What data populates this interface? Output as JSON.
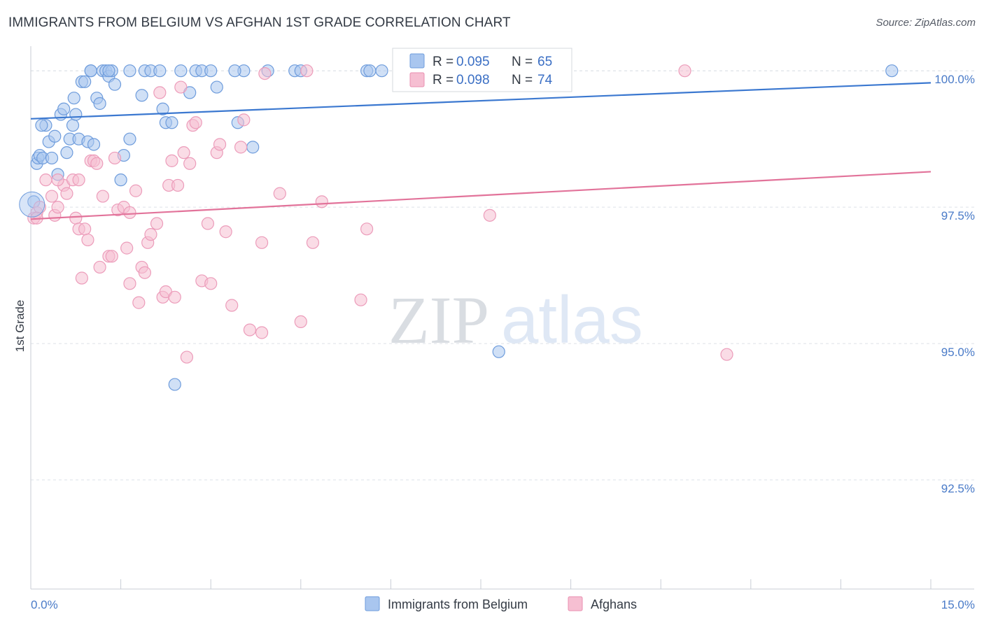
{
  "header": {
    "title": "IMMIGRANTS FROM BELGIUM VS AFGHAN 1ST GRADE CORRELATION CHART",
    "source": "Source: ZipAtlas.com"
  },
  "watermark": {
    "zip": "ZIP",
    "atlas": "atlas"
  },
  "colors": {
    "blue": "#3b78d0",
    "blue_fill": "#a9c6ef",
    "pink": "#e2739a",
    "pink_fill": "#f6bfd2",
    "tick": "#4a7bc8",
    "grid": "#dde1e7"
  },
  "chart_data": {
    "type": "scatter",
    "xlabel": "",
    "ylabel": "1st Grade",
    "xlim": [
      0,
      15
    ],
    "ylim": [
      90.5,
      100.4
    ],
    "x_tick_labels": [
      "0.0%",
      "15.0%"
    ],
    "y_ticks": [
      {
        "value": 100.0,
        "label": "100.0%"
      },
      {
        "value": 97.5,
        "label": "97.5%"
      },
      {
        "value": 95.0,
        "label": "95.0%"
      },
      {
        "value": 92.5,
        "label": "92.5%"
      }
    ],
    "legend": {
      "position": "top-center",
      "entries": [
        {
          "r_label": "R =",
          "r_value": "0.095",
          "n_label": "N =",
          "n_value": "65"
        },
        {
          "r_label": "R =",
          "r_value": "0.098",
          "n_label": "N =",
          "n_value": "74"
        }
      ]
    },
    "series": [
      {
        "name": "Immigrants from Belgium",
        "color": "#3b78d0",
        "trend": {
          "x": [
            0,
            15
          ],
          "y": [
            99.12,
            99.78
          ]
        },
        "points": [
          [
            0.05,
            97.6
          ],
          [
            0.1,
            98.3
          ],
          [
            0.12,
            98.4
          ],
          [
            0.15,
            98.45
          ],
          [
            0.2,
            98.4
          ],
          [
            0.25,
            99.0
          ],
          [
            0.3,
            98.7
          ],
          [
            0.35,
            98.4
          ],
          [
            0.4,
            98.8
          ],
          [
            0.45,
            98.1
          ],
          [
            0.5,
            99.2
          ],
          [
            0.55,
            99.3
          ],
          [
            0.6,
            98.5
          ],
          [
            0.65,
            98.75
          ],
          [
            0.7,
            99.0
          ],
          [
            0.72,
            99.5
          ],
          [
            0.75,
            99.2
          ],
          [
            0.8,
            98.75
          ],
          [
            0.85,
            99.8
          ],
          [
            0.9,
            99.8
          ],
          [
            0.95,
            98.7
          ],
          [
            1.0,
            100.0
          ],
          [
            1.05,
            98.65
          ],
          [
            1.1,
            99.5
          ],
          [
            1.15,
            99.4
          ],
          [
            1.2,
            100.0
          ],
          [
            1.25,
            100.0
          ],
          [
            1.3,
            99.9
          ],
          [
            1.35,
            100.0
          ],
          [
            1.4,
            99.75
          ],
          [
            1.5,
            98.0
          ],
          [
            1.55,
            98.45
          ],
          [
            1.65,
            98.75
          ],
          [
            1.65,
            100.0
          ],
          [
            1.85,
            99.55
          ],
          [
            1.9,
            100.0
          ],
          [
            2.0,
            100.0
          ],
          [
            2.15,
            100.0
          ],
          [
            2.2,
            99.3
          ],
          [
            2.25,
            99.05
          ],
          [
            2.35,
            99.05
          ],
          [
            2.5,
            100.0
          ],
          [
            2.65,
            99.6
          ],
          [
            2.75,
            100.0
          ],
          [
            2.85,
            100.0
          ],
          [
            3.0,
            100.0
          ],
          [
            3.1,
            99.7
          ],
          [
            3.45,
            99.05
          ],
          [
            3.55,
            100.0
          ],
          [
            3.7,
            98.6
          ],
          [
            3.95,
            100.0
          ],
          [
            4.4,
            100.0
          ],
          [
            4.5,
            100.0
          ],
          [
            5.6,
            100.0
          ],
          [
            5.65,
            100.0
          ],
          [
            5.85,
            100.0
          ],
          [
            6.15,
            100.0
          ],
          [
            6.15,
            100.0
          ],
          [
            7.8,
            94.85
          ],
          [
            2.4,
            94.25
          ],
          [
            14.35,
            100.0
          ],
          [
            0.18,
            99.0
          ],
          [
            1.0,
            100.0
          ],
          [
            3.4,
            100.0
          ],
          [
            1.3,
            100.0
          ]
        ]
      },
      {
        "name": "Afghans",
        "color": "#e2739a",
        "trend": {
          "x": [
            0,
            15
          ],
          "y": [
            97.28,
            98.15
          ]
        },
        "points": [
          [
            0.05,
            97.3
          ],
          [
            0.1,
            97.4
          ],
          [
            0.15,
            97.5
          ],
          [
            0.25,
            98.0
          ],
          [
            0.35,
            97.7
          ],
          [
            0.4,
            97.35
          ],
          [
            0.45,
            97.5
          ],
          [
            0.55,
            97.9
          ],
          [
            0.6,
            97.75
          ],
          [
            0.7,
            98.0
          ],
          [
            0.75,
            97.3
          ],
          [
            0.8,
            98.0
          ],
          [
            0.8,
            97.1
          ],
          [
            0.85,
            96.2
          ],
          [
            0.9,
            97.1
          ],
          [
            0.95,
            96.9
          ],
          [
            1.0,
            98.35
          ],
          [
            1.05,
            98.35
          ],
          [
            1.15,
            96.4
          ],
          [
            1.2,
            97.7
          ],
          [
            1.3,
            96.6
          ],
          [
            1.35,
            96.6
          ],
          [
            1.4,
            98.4
          ],
          [
            1.45,
            97.45
          ],
          [
            1.55,
            97.5
          ],
          [
            1.6,
            96.75
          ],
          [
            1.65,
            97.4
          ],
          [
            1.65,
            96.1
          ],
          [
            1.75,
            97.8
          ],
          [
            1.8,
            95.75
          ],
          [
            1.85,
            96.4
          ],
          [
            1.9,
            96.3
          ],
          [
            1.95,
            96.85
          ],
          [
            2.0,
            97.0
          ],
          [
            2.1,
            97.2
          ],
          [
            2.15,
            99.6
          ],
          [
            2.2,
            95.85
          ],
          [
            2.25,
            95.95
          ],
          [
            2.3,
            97.9
          ],
          [
            2.35,
            98.35
          ],
          [
            2.4,
            95.85
          ],
          [
            2.45,
            97.9
          ],
          [
            2.55,
            98.5
          ],
          [
            2.6,
            94.75
          ],
          [
            2.65,
            98.3
          ],
          [
            2.7,
            99.0
          ],
          [
            2.75,
            99.05
          ],
          [
            2.85,
            96.15
          ],
          [
            2.95,
            97.2
          ],
          [
            3.0,
            96.1
          ],
          [
            3.1,
            98.5
          ],
          [
            3.15,
            98.65
          ],
          [
            3.25,
            97.05
          ],
          [
            3.35,
            95.7
          ],
          [
            3.5,
            98.6
          ],
          [
            3.55,
            99.1
          ],
          [
            3.65,
            95.25
          ],
          [
            3.85,
            95.2
          ],
          [
            3.85,
            96.85
          ],
          [
            3.9,
            99.95
          ],
          [
            4.15,
            97.75
          ],
          [
            4.5,
            95.4
          ],
          [
            4.6,
            100.0
          ],
          [
            4.7,
            96.85
          ],
          [
            4.85,
            97.6
          ],
          [
            5.5,
            95.8
          ],
          [
            5.6,
            97.1
          ],
          [
            7.65,
            97.35
          ],
          [
            10.9,
            100.0
          ],
          [
            11.6,
            94.8
          ],
          [
            0.1,
            97.3
          ],
          [
            2.5,
            99.7
          ],
          [
            0.45,
            98.0
          ],
          [
            1.1,
            98.3
          ]
        ]
      }
    ]
  }
}
